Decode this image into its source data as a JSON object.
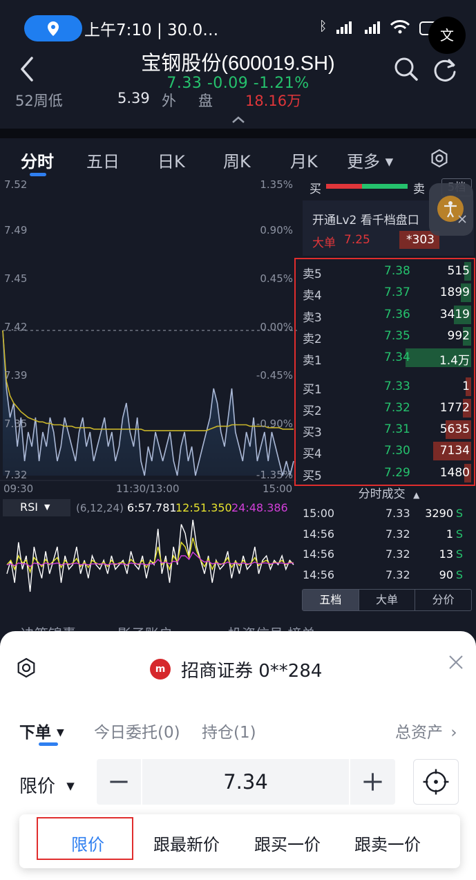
{
  "status_bar": {
    "time": "上午7:10 | 30.0…",
    "icons": [
      "location-icon",
      "bluetooth-icon",
      "signal-hd-icon",
      "signal-hd-icon",
      "wifi-icon",
      "battery-icon"
    ],
    "translate_label": "文"
  },
  "header": {
    "title": "宝钢股份(600019.SH)",
    "quote": "7.33 -0.09 -1.21%",
    "quote_color": "#25c26d",
    "sub_row": {
      "label_52w_low": "52周低",
      "value_52w_low": "5.39",
      "label_outer": "外",
      "label_pan": "盘",
      "value_outer": "18.16万"
    }
  },
  "tabs": [
    {
      "label": "分时",
      "active": true
    },
    {
      "label": "五日"
    },
    {
      "label": "日K"
    },
    {
      "label": "周K"
    },
    {
      "label": "月K"
    },
    {
      "label": "更多"
    }
  ],
  "chart_data": {
    "type": "line",
    "title": "",
    "x_ticks": [
      "09:30",
      "11:30/13:00",
      "15:00"
    ],
    "y_ticks_left": [
      "7.52",
      "7.49",
      "7.45",
      "7.42",
      "7.39",
      "7.35",
      "7.32"
    ],
    "y_ticks_right": [
      "1.35%",
      "0.90%",
      "0.45%",
      "0.00%",
      "-0.45%",
      "-0.90%",
      "-1.35%"
    ],
    "ylim": [
      7.32,
      7.52
    ],
    "prev_close": 7.42,
    "series": [
      {
        "color": "#aab8d6",
        "values": [
          7.42,
          7.38,
          7.36,
          7.37,
          7.34,
          7.36,
          7.33,
          7.35,
          7.34,
          7.36,
          7.33,
          7.35,
          7.34,
          7.36,
          7.35,
          7.33,
          7.34,
          7.36,
          7.35,
          7.34,
          7.33,
          7.35,
          7.36,
          7.34,
          7.35,
          7.33,
          7.34,
          7.35,
          7.36,
          7.34,
          7.35,
          7.33,
          7.34,
          7.36,
          7.37,
          7.35,
          7.34,
          7.36,
          7.33,
          7.32,
          7.34,
          7.33,
          7.35,
          7.34,
          7.33,
          7.34,
          7.35,
          7.33,
          7.32,
          7.34,
          7.35,
          7.33,
          7.34,
          7.32,
          7.33,
          7.34,
          7.35,
          7.36,
          7.38,
          7.37,
          7.35,
          7.34,
          7.36,
          7.38,
          7.35,
          7.34,
          7.33,
          7.35,
          7.34,
          7.36,
          7.33,
          7.34,
          7.35,
          7.33,
          7.35,
          7.34,
          7.33,
          7.32,
          7.33,
          7.32,
          7.33
        ]
      },
      {
        "color": "#c9b52a",
        "values": [
          7.42,
          7.385,
          7.375,
          7.37,
          7.367,
          7.364,
          7.362,
          7.36,
          7.359,
          7.358,
          7.357,
          7.357,
          7.356,
          7.356,
          7.355,
          7.355,
          7.355,
          7.354,
          7.354,
          7.354,
          7.353,
          7.353,
          7.353,
          7.353,
          7.353,
          7.352,
          7.352,
          7.352,
          7.352,
          7.352,
          7.352,
          7.352,
          7.352,
          7.352,
          7.352,
          7.352,
          7.352,
          7.352,
          7.352,
          7.351,
          7.351,
          7.351,
          7.351,
          7.351,
          7.351,
          7.351,
          7.351,
          7.351,
          7.351,
          7.351,
          7.351,
          7.351,
          7.351,
          7.351,
          7.351,
          7.351,
          7.351,
          7.352,
          7.353,
          7.354,
          7.354,
          7.354,
          7.354,
          7.355,
          7.355,
          7.355,
          7.355,
          7.355,
          7.354,
          7.354,
          7.354,
          7.354,
          7.354,
          7.353,
          7.353,
          7.353,
          7.353,
          7.352,
          7.352,
          7.352,
          7.352
        ]
      }
    ]
  },
  "rsi": {
    "label": "RSI",
    "params": "(6,12,24)",
    "v1": "6:57.781",
    "v2": "12:51.350",
    "v3": "24:48.386",
    "c1": "#ffffff",
    "c2": "#e7e32d",
    "c3": "#d23fd9",
    "series_white": [
      40,
      55,
      30,
      75,
      45,
      60,
      20,
      70,
      50,
      35,
      65,
      40,
      55,
      70,
      30,
      60,
      45,
      50,
      70,
      40,
      55,
      35,
      60,
      50,
      45,
      55,
      40,
      60,
      45,
      50,
      55,
      40,
      65,
      50,
      45,
      60,
      35,
      55,
      50,
      90,
      40,
      60,
      30,
      70,
      50,
      95,
      85,
      60,
      100,
      70,
      55,
      40,
      60,
      30,
      55,
      45,
      50,
      65,
      35,
      55,
      40,
      60,
      45,
      50,
      70,
      40,
      55,
      60,
      45,
      55,
      50,
      60,
      45,
      55,
      50
    ],
    "series_yellow": [
      50,
      55,
      45,
      60,
      52,
      55,
      42,
      58,
      53,
      48,
      56,
      50,
      54,
      58,
      47,
      55,
      50,
      52,
      57,
      48,
      53,
      47,
      55,
      52,
      50,
      53,
      48,
      55,
      50,
      52,
      53,
      49,
      56,
      52,
      50,
      55,
      47,
      54,
      52,
      70,
      50,
      55,
      45,
      60,
      53,
      75,
      70,
      58,
      80,
      65,
      55,
      48,
      57,
      45,
      54,
      50,
      52,
      58,
      47,
      54,
      49,
      55,
      50,
      52,
      58,
      49,
      53,
      55,
      50,
      53,
      52,
      55,
      50,
      53,
      52
    ],
    "series_purple": [
      50,
      51,
      49,
      52,
      51,
      51,
      48,
      52,
      51,
      50,
      52,
      51,
      51,
      52,
      50,
      51,
      51,
      51,
      52,
      50,
      51,
      50,
      51,
      51,
      51,
      51,
      50,
      51,
      51,
      51,
      51,
      50,
      52,
      51,
      51,
      51,
      50,
      51,
      51,
      56,
      52,
      53,
      51,
      54,
      53,
      60,
      60,
      56,
      64,
      60,
      56,
      53,
      54,
      51,
      52,
      51,
      51,
      53,
      51,
      52,
      51,
      52,
      51,
      51,
      53,
      51,
      52,
      52,
      51,
      52,
      52,
      52,
      51,
      52,
      52
    ]
  },
  "panel": {
    "buy_label": "买",
    "sell_label": "卖",
    "five_btn": "5档",
    "buy_color": "#e0363a",
    "sell_color": "#25c26d",
    "lv2_text": "开通Lv2 看千档盘口",
    "big_order_label": "大单",
    "big_order_price": "7.25",
    "big_order_qty": "*303"
  },
  "orderbook": {
    "asks": [
      {
        "label": "卖5",
        "price": "7.38",
        "qty": "515",
        "frac": 0.04
      },
      {
        "label": "卖4",
        "price": "7.37",
        "qty": "1899",
        "frac": 0.06
      },
      {
        "label": "卖3",
        "price": "7.36",
        "qty": "3419",
        "frac": 0.1
      },
      {
        "label": "卖2",
        "price": "7.35",
        "qty": "992",
        "frac": 0.05
      },
      {
        "label": "卖1",
        "price": "7.34",
        "qty": "1.4万",
        "frac": 0.38
      }
    ],
    "bids": [
      {
        "label": "买1",
        "price": "7.33",
        "qty": "1",
        "frac": 0.0
      },
      {
        "label": "买2",
        "price": "7.32",
        "qty": "1772",
        "frac": 0.05
      },
      {
        "label": "买3",
        "price": "7.31",
        "qty": "5635",
        "frac": 0.15
      },
      {
        "label": "买4",
        "price": "7.30",
        "qty": "7134",
        "frac": 0.22
      },
      {
        "label": "买5",
        "price": "7.29",
        "qty": "1480",
        "frac": 0.04
      }
    ]
  },
  "trades": {
    "title": "分时成交",
    "rows": [
      {
        "time": "15:00",
        "price": "7.33",
        "vol": "3290",
        "side": "S"
      },
      {
        "time": "14:56",
        "price": "7.32",
        "vol": "1",
        "side": "S"
      },
      {
        "time": "14:56",
        "price": "7.32",
        "vol": "13",
        "side": "S"
      },
      {
        "time": "14:56",
        "price": "7.32",
        "vol": "90",
        "side": "S"
      }
    ],
    "seg": [
      "五档",
      "大单",
      "分价"
    ]
  },
  "sheet": {
    "bg_row": [
      "决策锦囊",
      "影子账户",
      "投资信号·榜单"
    ],
    "broker": "招商证券 0**284",
    "order_tabs": [
      {
        "label": "下单"
      },
      {
        "label": "今日委托(0)"
      },
      {
        "label": "持仓(1)"
      }
    ],
    "total_assets": "总资产",
    "price_type": "限价",
    "price_value": "7.34",
    "dropdown_options": [
      "限价",
      "跟最新价",
      "跟买一价",
      "跟卖一价"
    ]
  }
}
